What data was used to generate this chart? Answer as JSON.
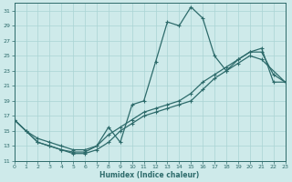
{
  "xlabel": "Humidex (Indice chaleur)",
  "bg_color": "#ceeaea",
  "line_color": "#2d6b6b",
  "grid_color": "#aad4d4",
  "x_min": 0,
  "x_max": 23,
  "y_min": 11,
  "y_max": 32,
  "y_ticks": [
    11,
    13,
    15,
    17,
    19,
    21,
    23,
    25,
    27,
    29,
    31
  ],
  "x_ticks": [
    0,
    1,
    2,
    3,
    4,
    5,
    6,
    7,
    8,
    9,
    10,
    11,
    12,
    13,
    14,
    15,
    16,
    17,
    18,
    19,
    20,
    21,
    22,
    23
  ],
  "series1_x": [
    0,
    1,
    2,
    3,
    4,
    5,
    6,
    7,
    8,
    9,
    10,
    11,
    12,
    13,
    14,
    15,
    16,
    17,
    18,
    19,
    20,
    21,
    22,
    23
  ],
  "series1_y": [
    16.5,
    15.0,
    13.5,
    13.0,
    12.5,
    12.2,
    12.2,
    13.0,
    15.5,
    13.5,
    18.5,
    19.0,
    24.2,
    29.5,
    29.0,
    31.5,
    30.0,
    25.0,
    23.0,
    24.5,
    25.5,
    25.5,
    22.5,
    21.5
  ],
  "series2_x": [
    0,
    2,
    3,
    4,
    5,
    6,
    7,
    8,
    9,
    10,
    11,
    12,
    13,
    14,
    15,
    16,
    17,
    18,
    19,
    20,
    21,
    23
  ],
  "series2_y": [
    16.5,
    13.5,
    13.0,
    12.5,
    12.0,
    12.0,
    12.5,
    13.5,
    15.0,
    16.0,
    17.0,
    17.5,
    18.0,
    18.5,
    19.0,
    20.5,
    22.0,
    23.0,
    24.0,
    25.0,
    24.5,
    21.5
  ],
  "series3_x": [
    0,
    1,
    2,
    3,
    4,
    5,
    6,
    7,
    8,
    9,
    10,
    11,
    12,
    13,
    14,
    15,
    16,
    17,
    18,
    19,
    20,
    21,
    22,
    23
  ],
  "series3_y": [
    16.5,
    15.0,
    14.0,
    13.5,
    13.0,
    12.5,
    12.5,
    13.0,
    14.5,
    15.5,
    16.5,
    17.5,
    18.0,
    18.5,
    19.0,
    20.0,
    21.5,
    22.5,
    23.5,
    24.5,
    25.5,
    26.0,
    21.5,
    21.5
  ]
}
